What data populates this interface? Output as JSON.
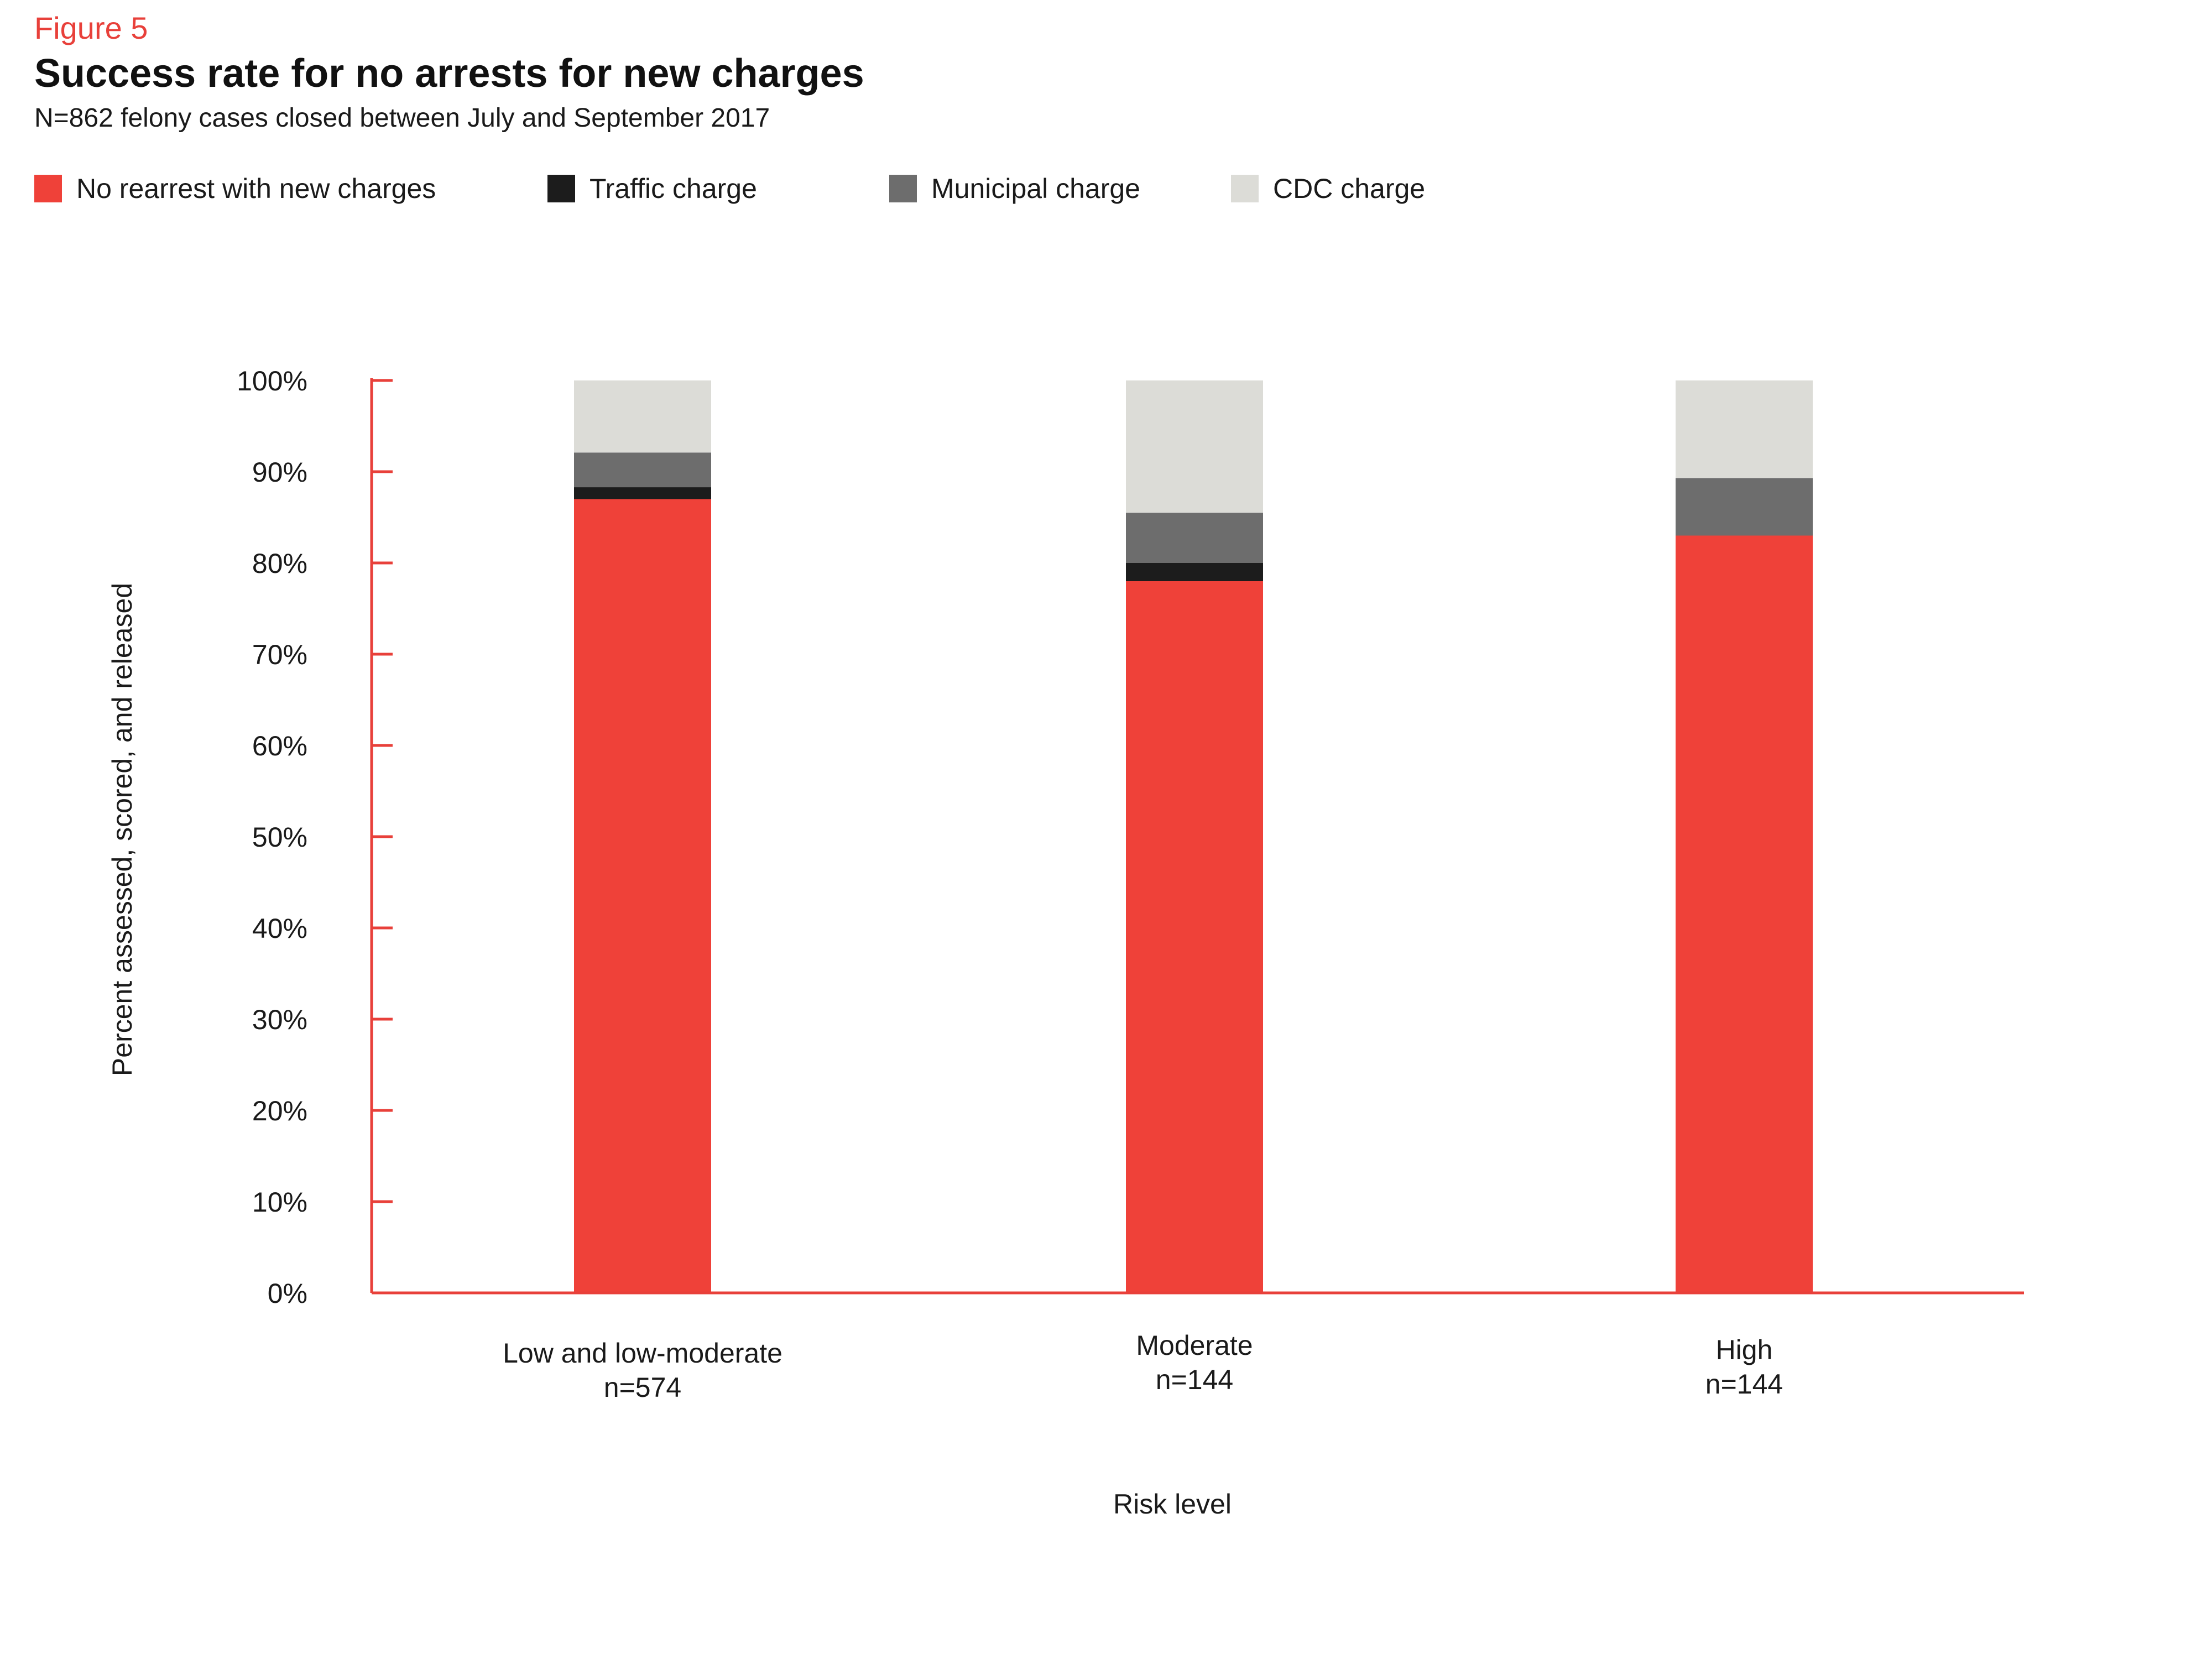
{
  "figure_label": "Figure 5",
  "colors": {
    "accent": "#e8403a",
    "axis": "#e8403a",
    "no_rearrest": "#ef4139",
    "traffic": "#1c1c1c",
    "municipal": "#6d6d6d",
    "cdc": "#dcdcd7"
  },
  "legend": {
    "items": [
      {
        "label": "No rearrest with new charges",
        "color": "#ef4139"
      },
      {
        "label": "Traffic charge",
        "color": "#1c1c1c"
      },
      {
        "label": "Municipal charge",
        "color": "#6d6d6d"
      },
      {
        "label": "CDC charge",
        "color": "#dcdcd7"
      }
    ]
  },
  "chart_data": {
    "type": "bar",
    "stacked": true,
    "title": "Success rate for no arrests for new charges",
    "subtitle": "N=862 felony cases closed between July and September 2017",
    "xlabel": "Risk level",
    "ylabel": "Percent assessed, scored, and released",
    "ylim": [
      0,
      100
    ],
    "yticks": [
      "0%",
      "10%",
      "20%",
      "30%",
      "40%",
      "50%",
      "60%",
      "70%",
      "80%",
      "90%",
      "100%"
    ],
    "ytick_values": [
      0,
      10,
      20,
      30,
      40,
      50,
      60,
      70,
      80,
      90,
      100
    ],
    "categories": [
      "Low and low-moderate",
      "Moderate",
      "High"
    ],
    "category_notes": [
      "n=574",
      "n=144",
      "n=144"
    ],
    "series": [
      {
        "name": "No rearrest with new charges",
        "values": [
          87,
          78,
          83
        ]
      },
      {
        "name": "Traffic charge",
        "values": [
          1.3,
          2,
          0
        ]
      },
      {
        "name": "Municipal charge",
        "values": [
          3.8,
          5.5,
          6.3
        ]
      },
      {
        "name": "CDC charge",
        "values": [
          7.9,
          14.5,
          10.7
        ]
      }
    ],
    "grid": false,
    "legend_position": "top-left"
  }
}
